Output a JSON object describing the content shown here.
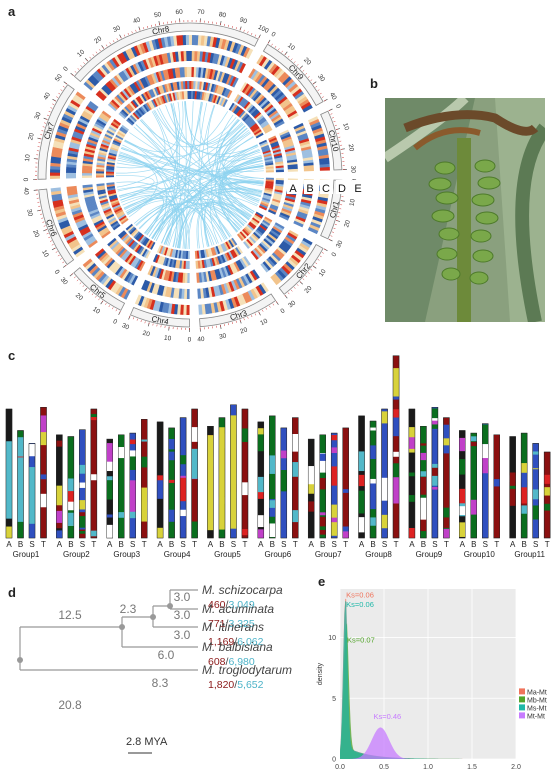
{
  "panel_labels": {
    "a": "a",
    "b": "b",
    "c": "c",
    "d": "d",
    "e": "e"
  },
  "circos": {
    "chromosomes": [
      {
        "name": "Chr1",
        "length": 30
      },
      {
        "name": "Chr2",
        "length": 30
      },
      {
        "name": "Chr3",
        "length": 40
      },
      {
        "name": "Chr4",
        "length": 30
      },
      {
        "name": "Chr5",
        "length": 30
      },
      {
        "name": "Chr6",
        "length": 40
      },
      {
        "name": "Chr7",
        "length": 50
      },
      {
        "name": "Chr8",
        "length": 100
      },
      {
        "name": "Chr9",
        "length": 40
      },
      {
        "name": "Chr10",
        "length": 30
      }
    ],
    "track_labels": [
      "A",
      "B",
      "C",
      "D",
      "E"
    ],
    "colors": {
      "high": "#d7301f",
      "mid": "#f5e0b8",
      "low": "#2c5aa8",
      "link": "#8fd3f0"
    }
  },
  "chromosome_map": {
    "groups": [
      "Group1",
      "Group2",
      "Group3",
      "Group4",
      "Group5",
      "Group6",
      "Group7",
      "Group8",
      "Group9",
      "Group10",
      "Group11"
    ],
    "bar_labels": [
      "A",
      "B",
      "S",
      "T"
    ],
    "colors": {
      "A": "#1a1a1a",
      "B": "#0a6e1e",
      "S": "#2f4fbf",
      "T": "#8b1010",
      "t_light": "#52b8c9",
      "yellow": "#d8d23a",
      "magenta": "#c040c8",
      "red": "#d22",
      "white": "#ffffff"
    }
  },
  "tree": {
    "taxa": [
      {
        "name": "M. schizocarpa",
        "c1": "460",
        "c2": "3,049"
      },
      {
        "name": "M. acuminata",
        "c1": "771",
        "c2": "3,325"
      },
      {
        "name": "M. itinerans",
        "c1": "1,169",
        "c2": "6,062"
      },
      {
        "name": "M. balbisiana",
        "c1": "608",
        "c2": "6,980"
      },
      {
        "name": "M. troglodytarum",
        "c1": "1,820",
        "c2": "5,652"
      }
    ],
    "branch_labels": [
      "3.0",
      "3.0",
      "3.0",
      "2.3",
      "6.0",
      "12.5",
      "8.3",
      "20.8"
    ],
    "scale_label": "2.8 MYA",
    "count_colors": {
      "c1": "#8b1a1a",
      "c2": "#4db3c8"
    }
  },
  "chart_data": {
    "type": "area",
    "x_label": "",
    "y_label": "density",
    "x_ticks": [
      "0.0",
      "0.5",
      "1.0",
      "1.5",
      "2.0"
    ],
    "y_ticks": [
      "0",
      "5",
      "10"
    ],
    "xlim": [
      0,
      2.0
    ],
    "ylim": [
      0,
      14
    ],
    "series": [
      {
        "name": "Ma-Mt",
        "color": "#f0735b",
        "peak_ks": 0.06,
        "peak_label": "Ks=0.06"
      },
      {
        "name": "Mb-Mt",
        "color": "#52a52a",
        "peak_ks": 0.07,
        "peak_label": "Ks=0.07"
      },
      {
        "name": "Ms-Mt",
        "color": "#1fb8a8",
        "peak_ks": 0.06,
        "peak_label": "Ks=0.06"
      },
      {
        "name": "Mt-Mt",
        "color": "#c77cff",
        "peak_ks": 0.46,
        "peak_label": "Ks=0.46"
      }
    ]
  }
}
